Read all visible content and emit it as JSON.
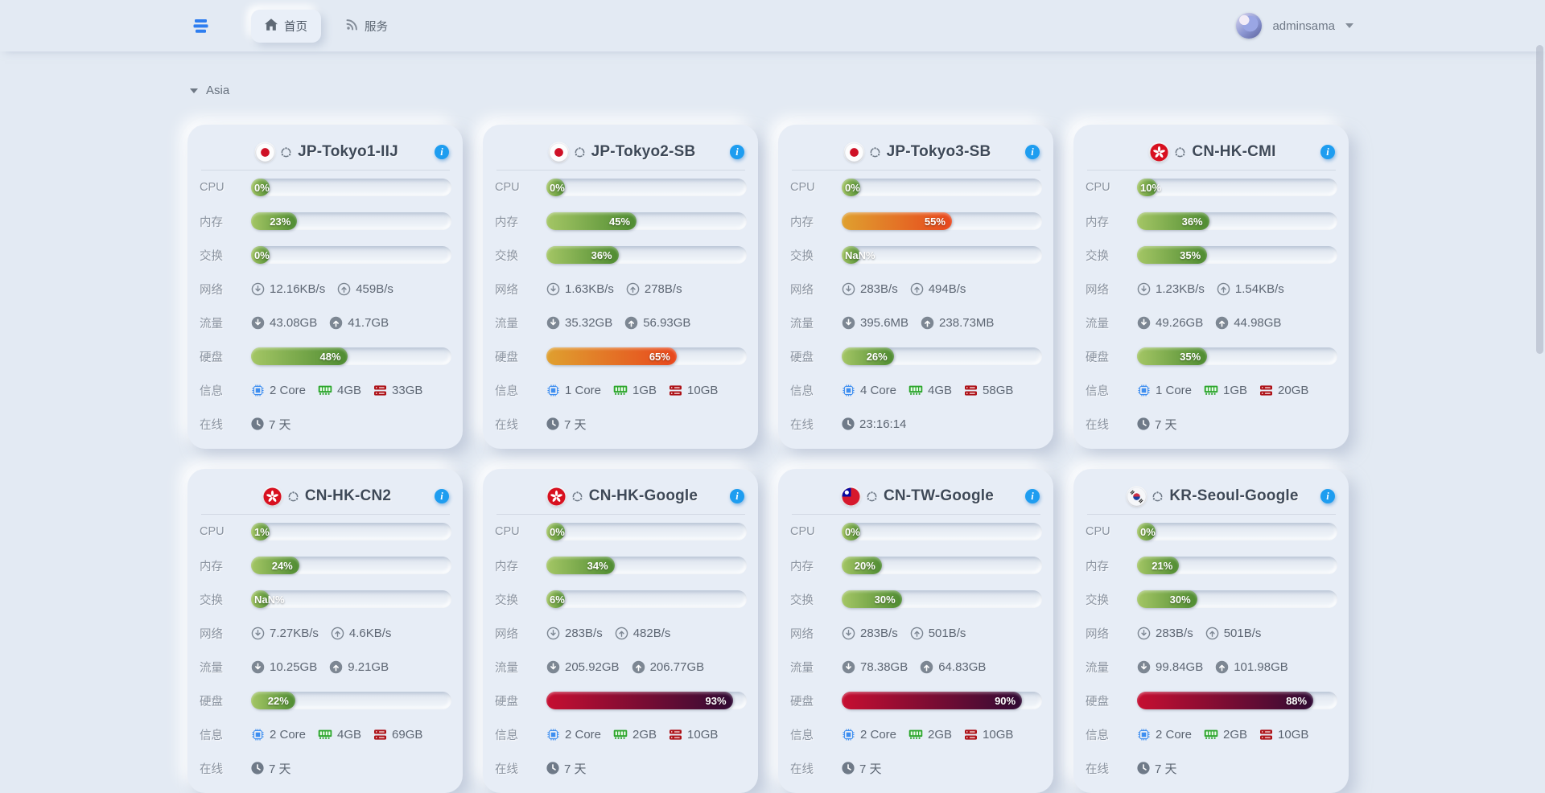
{
  "navbar": {
    "tabs": [
      {
        "label": "首页",
        "icon": "home-icon",
        "active": true
      },
      {
        "label": "服务",
        "icon": "rss-icon",
        "active": false
      }
    ],
    "user": {
      "name": "adminsama"
    }
  },
  "section": {
    "label": "Asia",
    "state": "expanded"
  },
  "row_labels": {
    "cpu": "CPU",
    "memory": "内存",
    "swap": "交换",
    "network": "网络",
    "traffic": "流量",
    "disk": "硬盘",
    "info": "信息",
    "uptime": "在线"
  },
  "icons": {
    "menu": "server-menu-icon",
    "home": "home-icon",
    "services": "rss-icon",
    "user_caret": "chevron-down-icon",
    "section_caret": "chevron-down-icon",
    "info": "info-icon",
    "os": "os-icon",
    "net_down": "download-circle-outline-icon",
    "net_up": "upload-circle-outline-icon",
    "traffic_down": "download-circle-icon",
    "traffic_up": "upload-circle-icon",
    "cores": "cpu-chip-icon",
    "ram": "ram-icon",
    "storage": "hard-disk-icon",
    "uptime": "clock-icon"
  },
  "colors": {
    "page_bg": "#e3eaf3",
    "card_bg": "#e7edf6",
    "accent_blue": "#1e9df0",
    "bar_green": [
      "#a4c665",
      "#4e8b31"
    ],
    "bar_orange": [
      "#dfa02f",
      "#e8471d"
    ],
    "bar_red": [
      "#c60e31",
      "#310b35"
    ]
  },
  "servers": [
    {
      "name": "JP-Tokyo1-IIJ",
      "flag": "jp",
      "cpu": {
        "value": 0,
        "label": "0%"
      },
      "memory": {
        "value": 23,
        "label": "23%"
      },
      "swap": {
        "value": 0,
        "label": "0%"
      },
      "network": {
        "down": "12.16KB/s",
        "up": "459B/s"
      },
      "traffic": {
        "down": "43.08GB",
        "up": "41.7GB"
      },
      "disk": {
        "value": 48,
        "label": "48%"
      },
      "info": {
        "cores": "2 Core",
        "ram": "4GB",
        "storage": "33GB"
      },
      "uptime": "7 天"
    },
    {
      "name": "JP-Tokyo2-SB",
      "flag": "jp",
      "cpu": {
        "value": 0,
        "label": "0%"
      },
      "memory": {
        "value": 45,
        "label": "45%"
      },
      "swap": {
        "value": 36,
        "label": "36%"
      },
      "network": {
        "down": "1.63KB/s",
        "up": "278B/s"
      },
      "traffic": {
        "down": "35.32GB",
        "up": "56.93GB"
      },
      "disk": {
        "value": 65,
        "label": "65%"
      },
      "info": {
        "cores": "1 Core",
        "ram": "1GB",
        "storage": "10GB"
      },
      "uptime": "7 天"
    },
    {
      "name": "JP-Tokyo3-SB",
      "flag": "jp",
      "cpu": {
        "value": 0,
        "label": "0%"
      },
      "memory": {
        "value": 55,
        "label": "55%"
      },
      "swap": {
        "value": "NaN",
        "label": "NaN%"
      },
      "network": {
        "down": "283B/s",
        "up": "494B/s"
      },
      "traffic": {
        "down": "395.6MB",
        "up": "238.73MB"
      },
      "disk": {
        "value": 26,
        "label": "26%"
      },
      "info": {
        "cores": "4 Core",
        "ram": "4GB",
        "storage": "58GB"
      },
      "uptime": "23:16:14"
    },
    {
      "name": "CN-HK-CMI",
      "flag": "hk",
      "cpu": {
        "value": 10,
        "label": "10%"
      },
      "memory": {
        "value": 36,
        "label": "36%"
      },
      "swap": {
        "value": 35,
        "label": "35%"
      },
      "network": {
        "down": "1.23KB/s",
        "up": "1.54KB/s"
      },
      "traffic": {
        "down": "49.26GB",
        "up": "44.98GB"
      },
      "disk": {
        "value": 35,
        "label": "35%"
      },
      "info": {
        "cores": "1 Core",
        "ram": "1GB",
        "storage": "20GB"
      },
      "uptime": "7 天"
    },
    {
      "name": "CN-HK-CN2",
      "flag": "hk",
      "cpu": {
        "value": 1,
        "label": "1%"
      },
      "memory": {
        "value": 24,
        "label": "24%"
      },
      "swap": {
        "value": "NaN",
        "label": "NaN%"
      },
      "network": {
        "down": "7.27KB/s",
        "up": "4.6KB/s"
      },
      "traffic": {
        "down": "10.25GB",
        "up": "9.21GB"
      },
      "disk": {
        "value": 22,
        "label": "22%"
      },
      "info": {
        "cores": "2 Core",
        "ram": "4GB",
        "storage": "69GB"
      },
      "uptime": "7 天"
    },
    {
      "name": "CN-HK-Google",
      "flag": "hk",
      "cpu": {
        "value": 0,
        "label": "0%"
      },
      "memory": {
        "value": 34,
        "label": "34%"
      },
      "swap": {
        "value": 6,
        "label": "6%"
      },
      "network": {
        "down": "283B/s",
        "up": "482B/s"
      },
      "traffic": {
        "down": "205.92GB",
        "up": "206.77GB"
      },
      "disk": {
        "value": 93,
        "label": "93%"
      },
      "info": {
        "cores": "2 Core",
        "ram": "2GB",
        "storage": "10GB"
      },
      "uptime": "7 天"
    },
    {
      "name": "CN-TW-Google",
      "flag": "tw",
      "cpu": {
        "value": 0,
        "label": "0%"
      },
      "memory": {
        "value": 20,
        "label": "20%"
      },
      "swap": {
        "value": 30,
        "label": "30%"
      },
      "network": {
        "down": "283B/s",
        "up": "501B/s"
      },
      "traffic": {
        "down": "78.38GB",
        "up": "64.83GB"
      },
      "disk": {
        "value": 90,
        "label": "90%"
      },
      "info": {
        "cores": "2 Core",
        "ram": "2GB",
        "storage": "10GB"
      },
      "uptime": "7 天"
    },
    {
      "name": "KR-Seoul-Google",
      "flag": "kr",
      "cpu": {
        "value": 0,
        "label": "0%"
      },
      "memory": {
        "value": 21,
        "label": "21%"
      },
      "swap": {
        "value": 30,
        "label": "30%"
      },
      "network": {
        "down": "283B/s",
        "up": "501B/s"
      },
      "traffic": {
        "down": "99.84GB",
        "up": "101.98GB"
      },
      "disk": {
        "value": 88,
        "label": "88%"
      },
      "info": {
        "cores": "2 Core",
        "ram": "2GB",
        "storage": "10GB"
      },
      "uptime": "7 天"
    }
  ]
}
